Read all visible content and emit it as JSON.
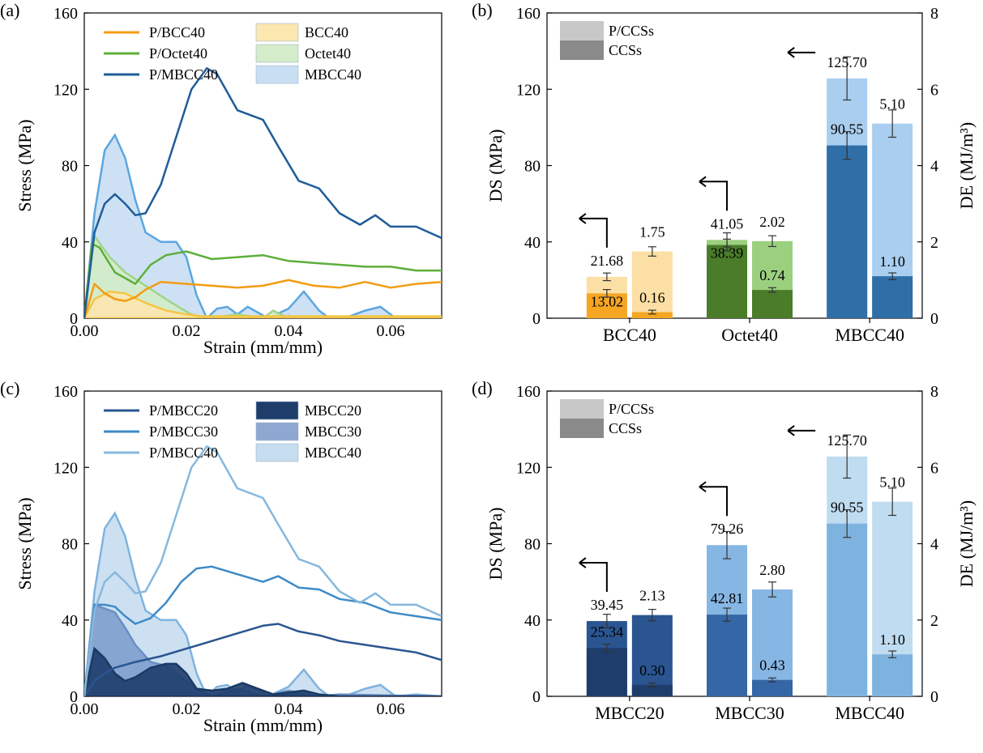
{
  "chart_data": [
    {
      "panel": "(a)",
      "type": "line",
      "xlabel": "Strain (mm/mm)",
      "ylabel": "Stress (MPa)",
      "xlim": [
        0,
        0.07
      ],
      "ylim": [
        0,
        160
      ],
      "xticks": [
        "0.00",
        "0.02",
        "0.04",
        "0.06"
      ],
      "yticks": [
        "0",
        "40",
        "80",
        "120",
        "160"
      ],
      "series": [
        {
          "name": "P/BCC40",
          "kind": "line",
          "color": "#f39c12",
          "x": [
            0,
            0.002,
            0.004,
            0.006,
            0.008,
            0.01,
            0.012,
            0.015,
            0.02,
            0.025,
            0.03,
            0.035,
            0.04,
            0.045,
            0.05,
            0.055,
            0.06,
            0.065,
            0.07
          ],
          "y": [
            0,
            18,
            13,
            10,
            9,
            11,
            15,
            19,
            18,
            17,
            16,
            17,
            20,
            17,
            16,
            19,
            16,
            18,
            19
          ]
        },
        {
          "name": "P/Octet40",
          "kind": "line",
          "color": "#5daf3a",
          "x": [
            0,
            0.0015,
            0.003,
            0.006,
            0.01,
            0.013,
            0.016,
            0.02,
            0.025,
            0.03,
            0.035,
            0.04,
            0.045,
            0.05,
            0.055,
            0.06,
            0.065,
            0.07
          ],
          "y": [
            0,
            39,
            37,
            24,
            18,
            28,
            33,
            35,
            31,
            32,
            33,
            30,
            29,
            28,
            27,
            27,
            25,
            25
          ]
        },
        {
          "name": "P/MBCC40",
          "kind": "line",
          "color": "#1f5c99",
          "x": [
            0,
            0.002,
            0.004,
            0.006,
            0.008,
            0.01,
            0.012,
            0.015,
            0.018,
            0.021,
            0.024,
            0.026,
            0.03,
            0.035,
            0.038,
            0.042,
            0.046,
            0.05,
            0.054,
            0.057,
            0.06,
            0.065,
            0.07
          ],
          "y": [
            0,
            45,
            60,
            65,
            60,
            54,
            55,
            70,
            95,
            120,
            131,
            128,
            109,
            104,
            90,
            72,
            68,
            55,
            49,
            54,
            48,
            48,
            42
          ]
        },
        {
          "name": "BCC40",
          "kind": "area",
          "color": "#f5c542",
          "fill": "#fce7b0",
          "x": [
            0,
            0.002,
            0.005,
            0.008,
            0.012,
            0.016,
            0.02,
            0.023,
            0.03,
            0.04,
            0.05,
            0.06,
            0.07
          ],
          "y": [
            0,
            10,
            14,
            13,
            8,
            4,
            2,
            1,
            1,
            1,
            1,
            1,
            1
          ]
        },
        {
          "name": "Octet40",
          "kind": "area",
          "color": "#9fd48a",
          "fill": "#d4ecc9",
          "x": [
            0,
            0.002,
            0.005,
            0.008,
            0.012,
            0.016,
            0.019,
            0.021,
            0.024,
            0.03,
            0.035,
            0.037,
            0.04,
            0.05,
            0.06,
            0.07
          ],
          "y": [
            0,
            43,
            32,
            24,
            17,
            10,
            5,
            2,
            0,
            2,
            0,
            4,
            0,
            1,
            0,
            0
          ]
        },
        {
          "name": "MBCC40",
          "kind": "area",
          "color": "#5aa6e0",
          "fill": "#c9def3",
          "x": [
            0,
            0.002,
            0.004,
            0.006,
            0.008,
            0.01,
            0.012,
            0.015,
            0.018,
            0.02,
            0.022,
            0.024,
            0.026,
            0.028,
            0.03,
            0.032,
            0.036,
            0.04,
            0.043,
            0.046,
            0.048,
            0.052,
            0.055,
            0.058,
            0.061,
            0.065,
            0.07
          ],
          "y": [
            0,
            55,
            88,
            96,
            84,
            62,
            45,
            40,
            40,
            32,
            12,
            0,
            5,
            6,
            2,
            6,
            0,
            5,
            14,
            4,
            0,
            1,
            4,
            6,
            0,
            1,
            0
          ]
        }
      ],
      "legend": [
        {
          "label": "P/BCC40",
          "kind": "line",
          "color": "#f39c12"
        },
        {
          "label": "P/Octet40",
          "kind": "line",
          "color": "#5daf3a"
        },
        {
          "label": "P/MBCC40",
          "kind": "line",
          "color": "#1f5c99"
        },
        {
          "label": "BCC40",
          "kind": "area",
          "color": "#fce7b0"
        },
        {
          "label": "Octet40",
          "kind": "area",
          "color": "#d4ecc9"
        },
        {
          "label": "MBCC40",
          "kind": "area",
          "color": "#c9def3"
        }
      ]
    },
    {
      "panel": "(b)",
      "type": "bar",
      "categories": [
        "BCC40",
        "Octet40",
        "MBCC40"
      ],
      "ylabel": "DS (MPa)",
      "y2label": "DE (MJ/m³)",
      "ylim": [
        0,
        160
      ],
      "y2lim": [
        0,
        8
      ],
      "yticks": [
        "0",
        "40",
        "80",
        "120",
        "160"
      ],
      "y2ticks": [
        "0",
        "2",
        "4",
        "6",
        "8"
      ],
      "legend": [
        {
          "label": "P/CCSs",
          "color": "#c8c8c8"
        },
        {
          "label": "CCSs",
          "color": "#8a8a8a"
        }
      ],
      "groups": [
        {
          "category": "BCC40",
          "light": "#fcdfa4",
          "dark": "#f5a623",
          "ds_pccs": 21.68,
          "ds_ccs": 13.02,
          "de_pccs": 1.75,
          "de_ccs": 0.16,
          "ds_pccs_label": "21.68",
          "ds_ccs_label": "13.02",
          "de_pccs_label": "1.75",
          "de_ccs_label": "0.16"
        },
        {
          "category": "Octet40",
          "light": "#9bd07f",
          "dark": "#4a7c2a",
          "ds_pccs": 41.05,
          "ds_ccs": 38.39,
          "de_pccs": 2.02,
          "de_ccs": 0.74,
          "ds_pccs_label": "41.05",
          "ds_ccs_label": "38.39",
          "de_pccs_label": "2.02",
          "de_ccs_label": "0.74"
        },
        {
          "category": "MBCC40",
          "light": "#a9ceef",
          "dark": "#2f6ea6",
          "ds_pccs": 125.7,
          "ds_ccs": 90.55,
          "de_pccs": 5.1,
          "de_ccs": 1.1,
          "ds_pccs_label": "125.70",
          "ds_ccs_label": "90.55",
          "de_pccs_label": "5.10",
          "de_ccs_label": "1.10"
        }
      ]
    },
    {
      "panel": "(c)",
      "type": "line",
      "xlabel": "Strain (mm/mm)",
      "ylabel": "Stress (MPa)",
      "xlim": [
        0,
        0.07
      ],
      "ylim": [
        0,
        160
      ],
      "xticks": [
        "0.00",
        "0.02",
        "0.04",
        "0.06"
      ],
      "yticks": [
        "0",
        "40",
        "80",
        "120",
        "160"
      ],
      "series": [
        {
          "name": "P/MBCC20",
          "kind": "line",
          "color": "#2a5590",
          "x": [
            0,
            0.002,
            0.004,
            0.006,
            0.01,
            0.015,
            0.02,
            0.025,
            0.03,
            0.035,
            0.038,
            0.042,
            0.046,
            0.05,
            0.055,
            0.06,
            0.065,
            0.07
          ],
          "y": [
            0,
            8,
            12,
            15,
            18,
            21,
            25,
            29,
            33,
            37,
            38,
            34,
            32,
            29,
            27,
            25,
            23,
            19
          ]
        },
        {
          "name": "P/MBCC30",
          "kind": "line",
          "color": "#3d8ac7",
          "x": [
            0,
            0.002,
            0.004,
            0.006,
            0.008,
            0.01,
            0.013,
            0.016,
            0.019,
            0.022,
            0.025,
            0.03,
            0.035,
            0.038,
            0.042,
            0.046,
            0.05,
            0.055,
            0.06,
            0.065,
            0.07
          ],
          "y": [
            0,
            48,
            48,
            47,
            42,
            38,
            41,
            49,
            60,
            67,
            68,
            64,
            60,
            63,
            57,
            56,
            51,
            49,
            44,
            42,
            40
          ]
        },
        {
          "name": "P/MBCC40",
          "kind": "line",
          "color": "#86b8dd",
          "x": [
            0,
            0.002,
            0.004,
            0.006,
            0.008,
            0.01,
            0.012,
            0.015,
            0.018,
            0.021,
            0.024,
            0.026,
            0.03,
            0.035,
            0.038,
            0.042,
            0.046,
            0.05,
            0.054,
            0.057,
            0.06,
            0.065,
            0.07
          ],
          "y": [
            0,
            45,
            60,
            65,
            60,
            54,
            55,
            70,
            95,
            120,
            131,
            128,
            109,
            104,
            90,
            72,
            68,
            55,
            49,
            54,
            48,
            48,
            42
          ]
        },
        {
          "name": "MBCC20",
          "kind": "area",
          "color": "#1a3a66",
          "fill": "#1f3d6b",
          "x": [
            0,
            0.002,
            0.004,
            0.006,
            0.008,
            0.01,
            0.013,
            0.016,
            0.018,
            0.02,
            0.022,
            0.025,
            0.028,
            0.031,
            0.034,
            0.037,
            0.04,
            0.043,
            0.046,
            0.05,
            0.07
          ],
          "y": [
            0,
            25,
            20,
            12,
            8,
            10,
            15,
            17,
            17,
            12,
            4,
            3,
            4,
            7,
            4,
            1,
            2,
            3,
            1,
            0,
            0
          ]
        },
        {
          "name": "MBCC30",
          "kind": "area",
          "color": "#6b8fc2",
          "fill": "#7f9fcd",
          "x": [
            0,
            0.002,
            0.004,
            0.006,
            0.008,
            0.01,
            0.013,
            0.016,
            0.019,
            0.022,
            0.025,
            0.03,
            0.035,
            0.04,
            0.045,
            0.05,
            0.07
          ],
          "y": [
            0,
            48,
            46,
            44,
            36,
            27,
            18,
            16,
            10,
            4,
            0,
            4,
            0,
            3,
            0,
            1,
            0
          ]
        },
        {
          "name": "MBCC40",
          "kind": "area",
          "color": "#7fb3df",
          "fill": "#c6ddef",
          "x": [
            0,
            0.002,
            0.004,
            0.006,
            0.008,
            0.01,
            0.012,
            0.015,
            0.018,
            0.02,
            0.022,
            0.024,
            0.026,
            0.028,
            0.03,
            0.032,
            0.036,
            0.04,
            0.043,
            0.046,
            0.048,
            0.052,
            0.055,
            0.058,
            0.061,
            0.065,
            0.07
          ],
          "y": [
            0,
            55,
            88,
            96,
            84,
            62,
            45,
            40,
            40,
            32,
            12,
            0,
            5,
            6,
            2,
            6,
            0,
            5,
            14,
            4,
            0,
            1,
            4,
            6,
            0,
            1,
            0
          ]
        }
      ],
      "legend": [
        {
          "label": "P/MBCC20",
          "kind": "line",
          "color": "#2a5590"
        },
        {
          "label": "P/MBCC30",
          "kind": "line",
          "color": "#3d8ac7"
        },
        {
          "label": "P/MBCC40",
          "kind": "line",
          "color": "#86b8dd"
        },
        {
          "label": "MBCC20",
          "kind": "area",
          "color": "#1f3d6b"
        },
        {
          "label": "MBCC30",
          "kind": "area",
          "color": "#8ea8d2"
        },
        {
          "label": "MBCC40",
          "kind": "area",
          "color": "#c6ddef"
        }
      ]
    },
    {
      "panel": "(d)",
      "type": "bar",
      "categories": [
        "MBCC20",
        "MBCC30",
        "MBCC40"
      ],
      "ylabel": "DS (MPa)",
      "y2label": "DE (MJ/m³)",
      "ylim": [
        0,
        160
      ],
      "y2lim": [
        0,
        8
      ],
      "yticks": [
        "0",
        "40",
        "80",
        "120",
        "160"
      ],
      "y2ticks": [
        "0",
        "2",
        "4",
        "6",
        "8"
      ],
      "legend": [
        {
          "label": "P/CCSs",
          "color": "#c8c8c8"
        },
        {
          "label": "CCSs",
          "color": "#8a8a8a"
        }
      ],
      "groups": [
        {
          "category": "MBCC20",
          "light": "#2a5590",
          "dark": "#1f3d6b",
          "ds_pccs": 39.45,
          "ds_ccs": 25.34,
          "de_pccs": 2.13,
          "de_ccs": 0.3,
          "ds_pccs_label": "39.45",
          "ds_ccs_label": "25.34",
          "de_pccs_label": "2.13",
          "de_ccs_label": "0.30"
        },
        {
          "category": "MBCC30",
          "light": "#86b6e3",
          "dark": "#3566a5",
          "ds_pccs": 79.26,
          "ds_ccs": 42.81,
          "de_pccs": 2.8,
          "de_ccs": 0.43,
          "ds_pccs_label": "79.26",
          "ds_ccs_label": "42.81",
          "de_pccs_label": "2.80",
          "de_ccs_label": "0.43"
        },
        {
          "category": "MBCC40",
          "light": "#bfdcf0",
          "dark": "#7fb3df",
          "ds_pccs": 125.7,
          "ds_ccs": 90.55,
          "de_pccs": 5.1,
          "de_ccs": 1.1,
          "ds_pccs_label": "125.70",
          "ds_ccs_label": "90.55",
          "de_pccs_label": "5.10",
          "de_ccs_label": "1.10"
        }
      ]
    }
  ]
}
